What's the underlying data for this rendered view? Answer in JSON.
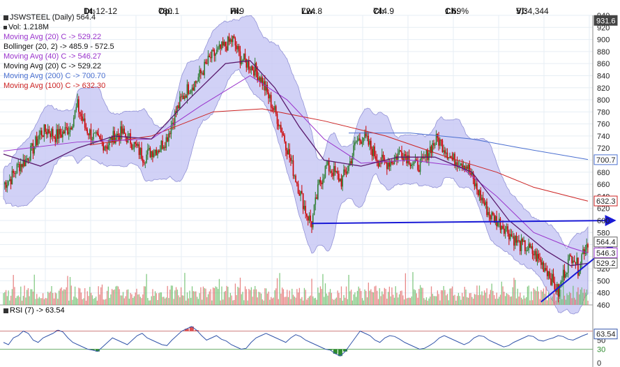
{
  "header": {
    "date_label": "Dt:",
    "date": "14-12-12",
    "open_label": "Op:",
    "open": "730.1",
    "high_label": "Hi:",
    "high": "749",
    "low_label": "Lw:",
    "low": "724.8",
    "close_label": "Cl:",
    "close": "744.9",
    "change_label": "Ch:",
    "change": "1.69%",
    "volume_label": "Vl:",
    "volume": "5,34,344"
  },
  "legend": {
    "title": "JSWSTEEL (Daily) 564.4",
    "volume": "Vol: 1.218M",
    "ma20": "Moving Avg (20) C -> 529.22",
    "bollinger": "Bollinger (20, 2) -> 485.9 - 572.5",
    "ma40": "Moving Avg (40) C -> 546.27",
    "ma20b": "Moving Avg (20) C -> 529.22",
    "ma200": "Moving Avg (200) C -> 700.70",
    "ma100": "Moving Avg (100) C -> 632.30"
  },
  "rsi_legend": "RSI (7) -> 63.54",
  "colors": {
    "bull": "#2e7d32",
    "bear": "#cc0000",
    "band_fill": "#c9c9f5",
    "band_line": "#8080d0",
    "ma20": "#5a1a6e",
    "ma40": "#9933cc",
    "ma200": "#4a6fd0",
    "ma100": "#cc2222",
    "trend": "#1a1ad6",
    "rsi": "#3355aa",
    "rsi_over": "#e05050",
    "rsi_under": "#2e8b2e"
  },
  "chart_data": {
    "type": "candlestick",
    "y_axis": {
      "min": 460,
      "max": 940,
      "ticks": [
        460,
        480,
        500,
        520,
        540,
        560,
        580,
        600,
        620,
        640,
        660,
        680,
        700,
        720,
        740,
        760,
        780,
        800,
        820,
        840,
        860,
        880,
        900,
        920,
        940
      ]
    },
    "value_badges": [
      {
        "label": "931.6",
        "value": 931.6,
        "style": "dark"
      },
      {
        "label": "700.7",
        "value": 700.7,
        "style": "blue"
      },
      {
        "label": "632.3",
        "value": 632.3,
        "style": "red"
      },
      {
        "label": "564.4",
        "value": 564.4,
        "style": "plain"
      },
      {
        "label": "546.3",
        "value": 546.3,
        "style": "purple"
      },
      {
        "label": "529.2",
        "value": 529.2,
        "style": "plain"
      }
    ],
    "close_path": [
      [
        0,
        660
      ],
      [
        6,
        670
      ],
      [
        12,
        690
      ],
      [
        18,
        700
      ],
      [
        24,
        720
      ],
      [
        30,
        745
      ],
      [
        36,
        750
      ],
      [
        42,
        740
      ],
      [
        48,
        745
      ],
      [
        54,
        755
      ],
      [
        60,
        790
      ],
      [
        66,
        755
      ],
      [
        72,
        740
      ],
      [
        78,
        730
      ],
      [
        84,
        725
      ],
      [
        90,
        740
      ],
      [
        96,
        745
      ],
      [
        102,
        735
      ],
      [
        108,
        720
      ],
      [
        114,
        705
      ],
      [
        120,
        715
      ],
      [
        126,
        720
      ],
      [
        132,
        735
      ],
      [
        138,
        770
      ],
      [
        144,
        800
      ],
      [
        150,
        820
      ],
      [
        156,
        830
      ],
      [
        162,
        850
      ],
      [
        168,
        870
      ],
      [
        174,
        880
      ],
      [
        180,
        890
      ],
      [
        186,
        900
      ],
      [
        192,
        870
      ],
      [
        198,
        860
      ],
      [
        204,
        850
      ],
      [
        210,
        830
      ],
      [
        216,
        800
      ],
      [
        222,
        770
      ],
      [
        228,
        735
      ],
      [
        234,
        690
      ],
      [
        240,
        650
      ],
      [
        246,
        610
      ],
      [
        250,
        595
      ],
      [
        256,
        660
      ],
      [
        262,
        690
      ],
      [
        268,
        680
      ],
      [
        274,
        665
      ],
      [
        280,
        690
      ],
      [
        286,
        730
      ],
      [
        292,
        740
      ],
      [
        298,
        720
      ],
      [
        304,
        700
      ],
      [
        310,
        695
      ],
      [
        316,
        700
      ],
      [
        322,
        715
      ],
      [
        328,
        705
      ],
      [
        334,
        690
      ],
      [
        340,
        695
      ],
      [
        346,
        720
      ],
      [
        352,
        735
      ],
      [
        358,
        720
      ],
      [
        364,
        700
      ],
      [
        370,
        700
      ],
      [
        376,
        690
      ],
      [
        382,
        660
      ],
      [
        388,
        635
      ],
      [
        394,
        610
      ],
      [
        400,
        600
      ],
      [
        406,
        590
      ],
      [
        412,
        575
      ],
      [
        418,
        560
      ],
      [
        424,
        555
      ],
      [
        430,
        545
      ],
      [
        436,
        530
      ],
      [
        442,
        515
      ],
      [
        446,
        495
      ],
      [
        450,
        480
      ],
      [
        454,
        510
      ],
      [
        458,
        530
      ],
      [
        462,
        545
      ],
      [
        466,
        520
      ],
      [
        470,
        550
      ],
      [
        474,
        565
      ]
    ],
    "sma_points": {
      "ma20": [
        [
          0,
          710
        ],
        [
          30,
          690
        ],
        [
          60,
          720
        ],
        [
          90,
          740
        ],
        [
          120,
          735
        ],
        [
          150,
          800
        ],
        [
          180,
          860
        ],
        [
          200,
          865
        ],
        [
          220,
          820
        ],
        [
          240,
          755
        ],
        [
          260,
          700
        ],
        [
          290,
          690
        ],
        [
          320,
          705
        ],
        [
          350,
          705
        ],
        [
          380,
          680
        ],
        [
          410,
          600
        ],
        [
          440,
          550
        ],
        [
          460,
          525
        ],
        [
          474,
          529
        ]
      ],
      "ma40": [
        [
          0,
          715
        ],
        [
          60,
          730
        ],
        [
          120,
          735
        ],
        [
          160,
          790
        ],
        [
          200,
          840
        ],
        [
          230,
          800
        ],
        [
          260,
          735
        ],
        [
          290,
          695
        ],
        [
          330,
          700
        ],
        [
          370,
          690
        ],
        [
          400,
          640
        ],
        [
          430,
          580
        ],
        [
          460,
          555
        ],
        [
          474,
          546
        ]
      ],
      "ma100": [
        [
          70,
          725
        ],
        [
          120,
          740
        ],
        [
          170,
          780
        ],
        [
          210,
          785
        ],
        [
          260,
          765
        ],
        [
          310,
          740
        ],
        [
          360,
          705
        ],
        [
          400,
          680
        ],
        [
          430,
          655
        ],
        [
          474,
          632
        ]
      ],
      "ma200": [
        [
          280,
          745
        ],
        [
          330,
          745
        ],
        [
          380,
          735
        ],
        [
          420,
          720
        ],
        [
          474,
          701
        ]
      ]
    },
    "trendlines": [
      {
        "from": [
          250,
          595
        ],
        "to": [
          480,
          600
        ]
      },
      {
        "from": [
          436,
          465
        ],
        "to": [
          480,
          565
        ]
      }
    ],
    "rsi": {
      "period": 7,
      "value": 63.54,
      "levels": [
        30,
        70
      ],
      "ylim": [
        0,
        100
      ],
      "axis_ticks": [
        0,
        30,
        50
      ],
      "badge": "63.54",
      "series": [
        45,
        40,
        55,
        60,
        70,
        65,
        50,
        45,
        55,
        60,
        65,
        72,
        68,
        55,
        45,
        40,
        35,
        30,
        28,
        25,
        35,
        45,
        55,
        50,
        45,
        40,
        50,
        60,
        65,
        55,
        50,
        45,
        40,
        38,
        50,
        60,
        70,
        75,
        80,
        72,
        60,
        50,
        55,
        60,
        52,
        48,
        40,
        35,
        30,
        32,
        45,
        55,
        60,
        65,
        60,
        55,
        50,
        45,
        55,
        62,
        58,
        50,
        45,
        40,
        35,
        30,
        28,
        20,
        15,
        25,
        40,
        55,
        70,
        65,
        60,
        50,
        45,
        55,
        60,
        58,
        52,
        45,
        40,
        35,
        30,
        32,
        38,
        45,
        55,
        60,
        55,
        50,
        45,
        40,
        45,
        55,
        60,
        58,
        50,
        45,
        40,
        35,
        38,
        45,
        50,
        55,
        60,
        58,
        50,
        48,
        52,
        55,
        60,
        58,
        52,
        50,
        55,
        60,
        64
      ]
    }
  }
}
